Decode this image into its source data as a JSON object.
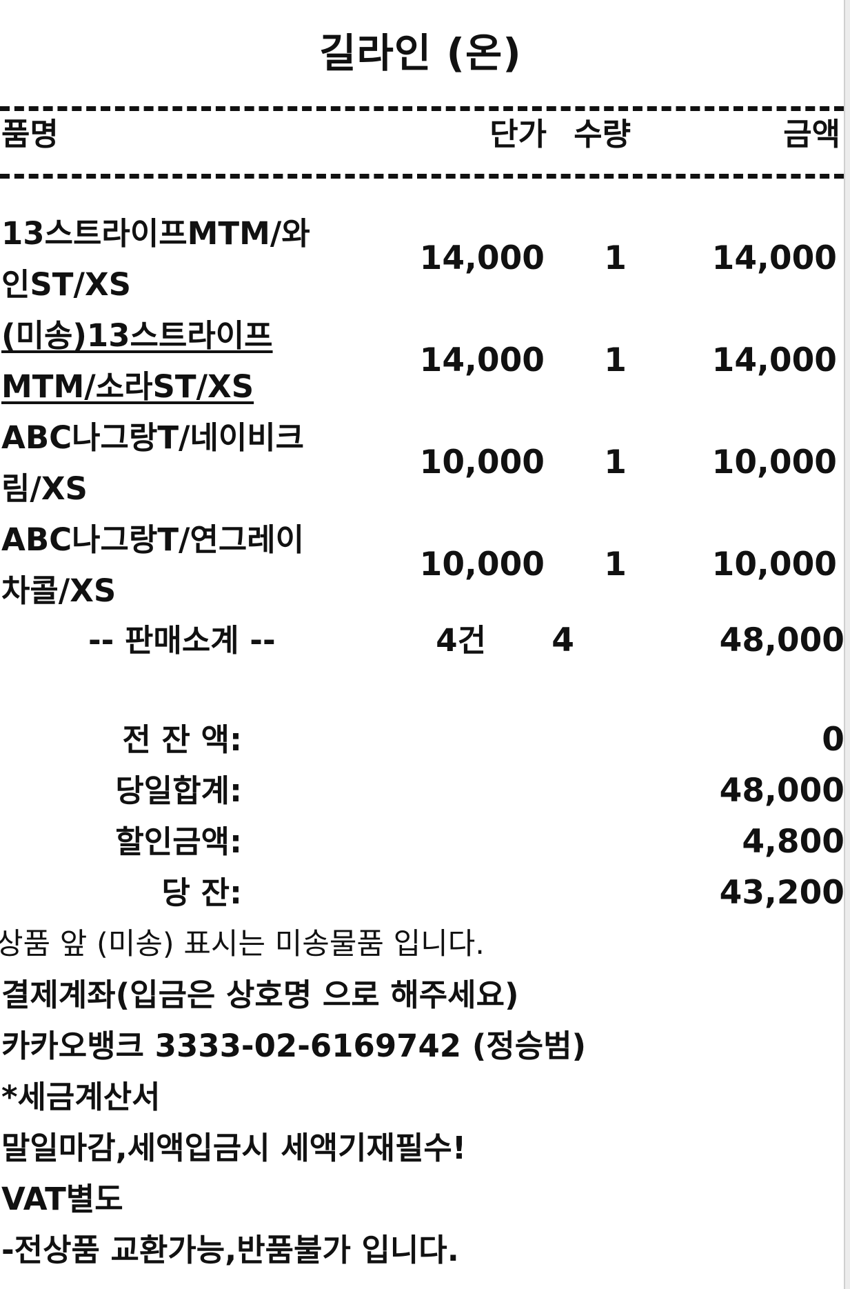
{
  "receipt": {
    "title": "길라인 (온)",
    "headers": {
      "name": "품명",
      "price": "단가",
      "qty": "수량",
      "amount": "금액"
    },
    "items": [
      {
        "name_line1": "13스트라이프MTM/와",
        "name_line2": "인ST/XS",
        "price": "14,000",
        "qty": "1",
        "amount": "14,000",
        "unsent": false
      },
      {
        "name_line1": "(미송)13스트라이프",
        "name_line2": "MTM/소라ST/XS",
        "price": "14,000",
        "qty": "1",
        "amount": "14,000",
        "unsent": true
      },
      {
        "name_line1": "ABC나그랑T/네이비크",
        "name_line2": "림/XS",
        "price": "10,000",
        "qty": "1",
        "amount": "10,000",
        "unsent": false
      },
      {
        "name_line1": "ABC나그랑T/연그레이",
        "name_line2": "차콜/XS",
        "price": "10,000",
        "qty": "1",
        "amount": "10,000",
        "unsent": false
      }
    ],
    "subtotal": {
      "label": "-- 판매소계 --",
      "count": "4건",
      "qty": "4",
      "amount": "48,000"
    },
    "summary": [
      {
        "label": "전 잔 액:",
        "value": "0"
      },
      {
        "label": "당일합계:",
        "value": "48,000"
      },
      {
        "label": "할인금액:",
        "value": "4,800"
      },
      {
        "label": "당 잔:",
        "value": "43,200"
      }
    ],
    "note": "상품 앞 (미송) 표시는 미송물품 입니다.",
    "footer_lines": [
      "결제계좌(입금은 상호명 으로 해주세요)",
      "카카오뱅크 3333-02-6169742 (정승범)",
      "*세금계산서",
      "말일마감,세액입금시 세액기재필수!",
      "VAT별도",
      "-전상품 교환가능,반품불가 입니다."
    ]
  }
}
